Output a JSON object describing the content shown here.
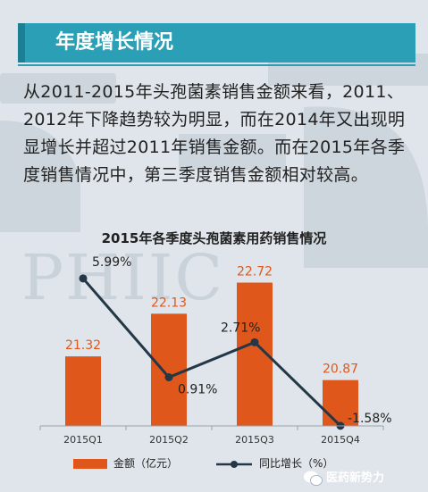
{
  "header": {
    "title": "年度增长情况"
  },
  "intro": {
    "text": "从2011-2015年头孢菌素销售金额来看，2011、2012年下降趋势较为明显，而在2014年又出现明显增长并超过2011年销售金额。而在2015年各季度销售情况中，第三季度销售金额相对较高。"
  },
  "watermark": {
    "text": "PHIIC"
  },
  "chart_data": {
    "type": "bar",
    "title": "2015年各季度头孢菌素用药销售情况",
    "categories": [
      "2015Q1",
      "2015Q2",
      "2015Q3",
      "2015Q4"
    ],
    "series": [
      {
        "name": "金额（亿元）",
        "type": "bar",
        "values": [
          21.32,
          22.13,
          22.72,
          20.87
        ],
        "labels": [
          "21.32",
          "22.13",
          "22.72",
          "20.87"
        ],
        "color": "#e0571b"
      },
      {
        "name": "同比增长（%）",
        "type": "line",
        "values": [
          5.99,
          0.91,
          2.71,
          -1.58
        ],
        "labels": [
          "5.99%",
          "0.91%",
          "2.71%",
          "-1.58%"
        ],
        "color": "#243746"
      }
    ],
    "bar_ylim": [
      20,
      23
    ],
    "line_ylim": [
      -2,
      8
    ],
    "legend_position": "bottom",
    "grid": false
  },
  "brand": {
    "name": "医药新势力"
  }
}
